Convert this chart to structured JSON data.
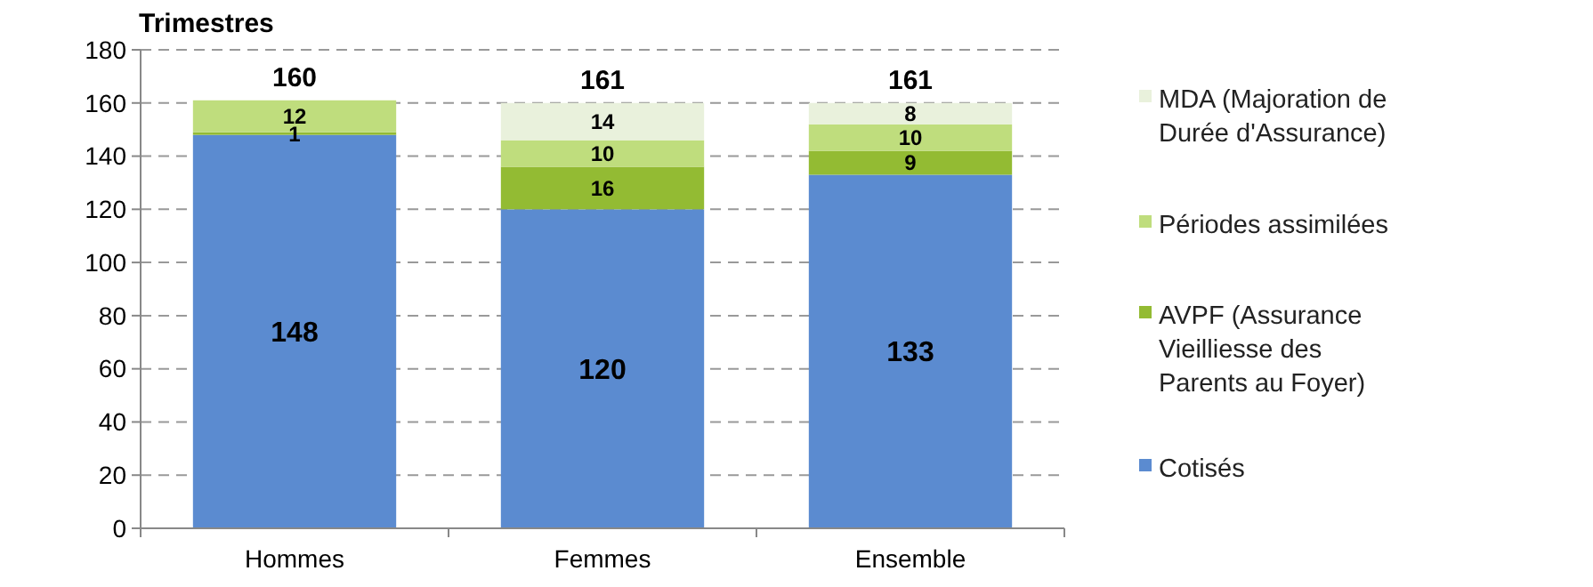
{
  "chart_data": {
    "type": "bar",
    "ylabel": "Trimestres",
    "categories": [
      "Hommes",
      "Femmes",
      "Ensemble"
    ],
    "stacked": true,
    "ylim": [
      0,
      180
    ],
    "yticks": [
      0,
      20,
      40,
      60,
      80,
      100,
      120,
      140,
      160,
      180
    ],
    "grid": "y",
    "legend": "right",
    "data_labels": true,
    "totals": [
      "160",
      "161",
      "161"
    ],
    "series": [
      {
        "name": "Cotisés",
        "color": "#5b8bd0",
        "values": [
          148,
          120,
          133
        ]
      },
      {
        "name": "AVPF (Assurance Vieilliesse des Parents au Foyer)",
        "color": "#93bb33",
        "values": [
          1,
          16,
          9
        ]
      },
      {
        "name": "Périodes assimilées",
        "color": "#bfdd7d",
        "values": [
          12,
          10,
          10
        ]
      },
      {
        "name": "MDA (Majoration de Durée d'Assurance)",
        "color": "#e9f1dc",
        "values": [
          null,
          14,
          8
        ]
      }
    ]
  }
}
